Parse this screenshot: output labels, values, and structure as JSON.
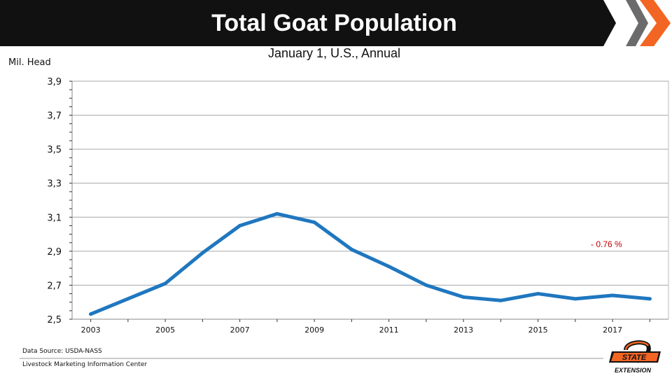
{
  "header": {
    "title": "Total Goat Population",
    "subtitle": "January 1, U.S., Annual",
    "brand_colors": {
      "banner": "#111111",
      "accent": "#f26522"
    }
  },
  "unit_label": "Mil. Head",
  "chart_data": {
    "type": "line",
    "title": "Total Goat Population",
    "subtitle": "January 1, U.S., Annual",
    "ylabel": "Mil. Head",
    "xlabel": "",
    "ylim": [
      2.5,
      3.9
    ],
    "xlim": [
      2002.5,
      2018.5
    ],
    "yticks": [
      "2,5",
      "2,7",
      "2,9",
      "3,1",
      "3,3",
      "3,5",
      "3,7",
      "3,9"
    ],
    "ytick_values": [
      2.5,
      2.7,
      2.9,
      3.1,
      3.3,
      3.5,
      3.7,
      3.9
    ],
    "xticks": [
      "2003",
      "2005",
      "2007",
      "2009",
      "2011",
      "2013",
      "2015",
      "2017"
    ],
    "xtick_values": [
      2003,
      2005,
      2007,
      2009,
      2011,
      2013,
      2015,
      2017
    ],
    "grid": true,
    "series": [
      {
        "color": "#1f77bf",
        "x": [
          2003,
          2004,
          2005,
          2006,
          2007,
          2008,
          2009,
          2010,
          2011,
          2012,
          2013,
          2014,
          2015,
          2016,
          2017,
          2018
        ],
        "values": [
          2.53,
          2.62,
          2.71,
          2.89,
          3.05,
          3.12,
          3.07,
          2.91,
          2.81,
          2.7,
          2.63,
          2.61,
          2.65,
          2.62,
          2.64,
          2.62
        ]
      }
    ],
    "annotation": {
      "text": "- 0.76 %",
      "color": "#c00000"
    }
  },
  "footer": {
    "source": "Data Source: USDA-NASS",
    "credit": "Livestock Marketing Information Center",
    "logo_text_top": "STATE",
    "logo_text_bottom": "EXTENSION"
  }
}
